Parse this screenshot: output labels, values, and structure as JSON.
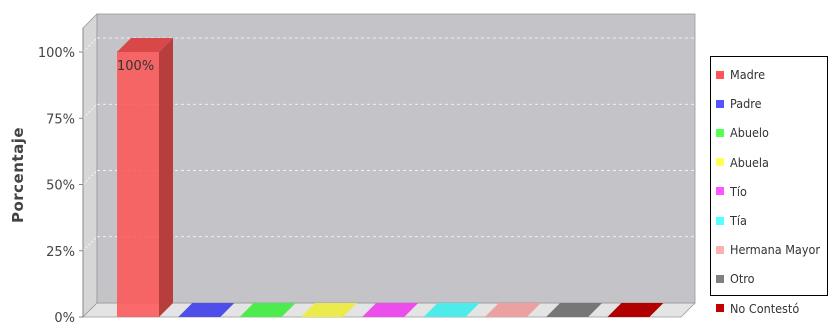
{
  "chart_data": {
    "type": "bar",
    "ylabel": "Porcentaje",
    "ylim": [
      0,
      100
    ],
    "yticks": [
      "0%",
      "25%",
      "50%",
      "75%",
      "100%"
    ],
    "grid": true,
    "legend_position": "right",
    "series": [
      {
        "name": "Madre",
        "value": 100,
        "color": "#ff5555",
        "label": "100%"
      },
      {
        "name": "Padre",
        "value": 0,
        "color": "#5555ff",
        "label": ""
      },
      {
        "name": "Abuelo",
        "value": 0,
        "color": "#55ff55",
        "label": ""
      },
      {
        "name": "Abuela",
        "value": 0,
        "color": "#ffff55",
        "label": ""
      },
      {
        "name": "Tío",
        "value": 0,
        "color": "#ff55ff",
        "label": ""
      },
      {
        "name": "Tía",
        "value": 0,
        "color": "#55ffff",
        "label": ""
      },
      {
        "name": "Hermana Mayor",
        "value": 0,
        "color": "#ffafaf",
        "label": ""
      },
      {
        "name": "Otro",
        "value": 0,
        "color": "#808080",
        "label": ""
      },
      {
        "name": "No Contestó",
        "value": 0,
        "color": "#c00000",
        "label": ""
      }
    ]
  }
}
